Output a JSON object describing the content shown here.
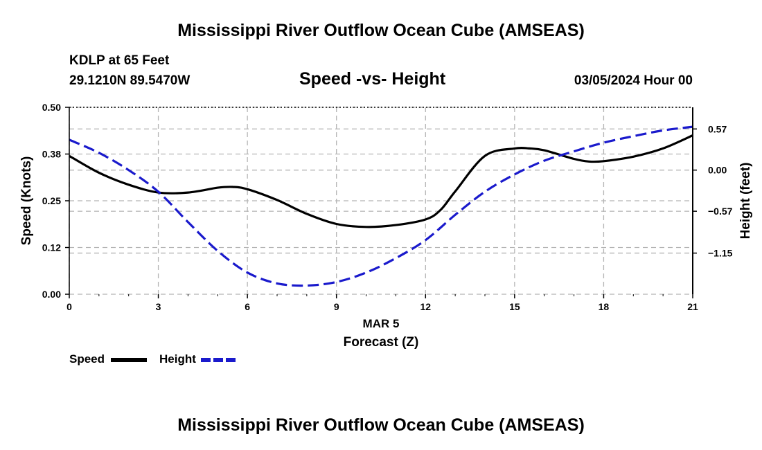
{
  "header": {
    "title": "Mississippi River Outflow Ocean Cube (AMSEAS)",
    "station": "KDLP at 65 Feet",
    "coordinates": "29.1210N  89.5470W",
    "chart_subtitle": "Speed -vs- Height",
    "datetime": "03/05/2024 Hour 00"
  },
  "footer": {
    "title": "Mississippi River Outflow Ocean Cube (AMSEAS)"
  },
  "legend": {
    "speed_label": "Speed",
    "height_label": "Height"
  },
  "colors": {
    "speed": "#000000",
    "height": "#1a1acc",
    "grid": "#b4b4b4"
  },
  "chart_data": {
    "type": "line",
    "title": "Speed -vs- Height",
    "xlabel": "Forecast (Z)",
    "xdate_label": "MAR 5",
    "ylabel": "Speed (Knots)",
    "y2label": "Height (feet)",
    "xlim": [
      0,
      21
    ],
    "x_ticks": [
      0,
      3,
      6,
      9,
      12,
      15,
      18,
      21
    ],
    "x_tick_labels": [
      "0",
      "3",
      "6",
      "9",
      "12",
      "15",
      "18",
      "21"
    ],
    "ylim": [
      0,
      0.5
    ],
    "y_ticks": [
      0,
      0.125,
      0.25,
      0.375,
      0.5
    ],
    "y_tick_labels": [
      "0.00",
      "0.12",
      "0.25",
      "0.38",
      "0.50"
    ],
    "y2lim": [
      -1.72,
      0.87
    ],
    "y2_ticks": [
      0.57,
      0.0,
      -0.57,
      -1.15
    ],
    "y2_tick_labels": [
      "0.57",
      "0.00",
      "−0.57",
      "−1.15"
    ],
    "series": [
      {
        "name": "Speed",
        "axis": "left",
        "style": "solid",
        "x": [
          0,
          1,
          2,
          3,
          4,
          5,
          5.5,
          6,
          7,
          8,
          9,
          10,
          11,
          12,
          12.5,
          13,
          14,
          15,
          15.5,
          16,
          17,
          17.5,
          18,
          19,
          20,
          21
        ],
        "values": [
          0.37,
          0.325,
          0.293,
          0.272,
          0.272,
          0.285,
          0.287,
          0.281,
          0.252,
          0.215,
          0.188,
          0.18,
          0.185,
          0.2,
          0.225,
          0.275,
          0.37,
          0.39,
          0.39,
          0.385,
          0.362,
          0.355,
          0.356,
          0.368,
          0.39,
          0.425
        ]
      },
      {
        "name": "Height",
        "axis": "right",
        "style": "dashed",
        "x": [
          0,
          1,
          2,
          3,
          4,
          5,
          6,
          7,
          8,
          9,
          10,
          11,
          12,
          13,
          14,
          15,
          16,
          17,
          18,
          19,
          20,
          21
        ],
        "values": [
          0.42,
          0.24,
          0.0,
          -0.3,
          -0.72,
          -1.12,
          -1.42,
          -1.57,
          -1.6,
          -1.55,
          -1.42,
          -1.22,
          -0.97,
          -0.62,
          -0.3,
          -0.06,
          0.13,
          0.26,
          0.38,
          0.47,
          0.55,
          0.6
        ]
      }
    ]
  }
}
